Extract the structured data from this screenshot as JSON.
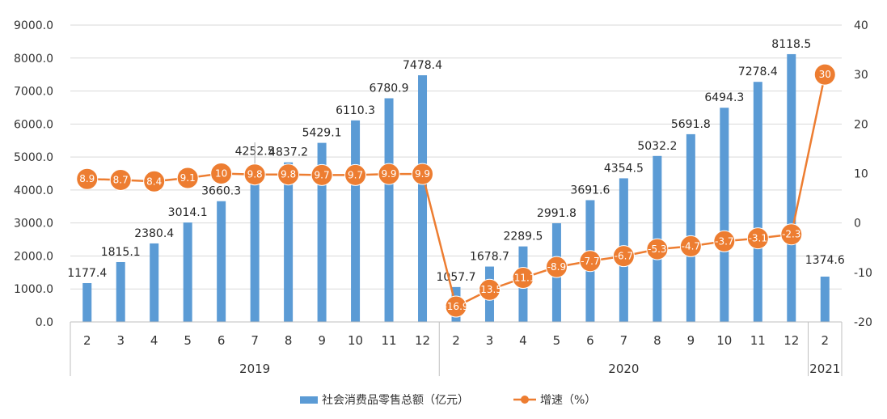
{
  "chart_data": {
    "type": "bar",
    "groups": [
      {
        "label": "2019",
        "categories": [
          "2",
          "3",
          "4",
          "5",
          "6",
          "7",
          "8",
          "9",
          "10",
          "11",
          "12"
        ]
      },
      {
        "label": "2020",
        "categories": [
          "2",
          "3",
          "4",
          "5",
          "6",
          "7",
          "8",
          "9",
          "10",
          "11",
          "12"
        ]
      },
      {
        "label": "2021",
        "categories": [
          "2"
        ]
      }
    ],
    "series": [
      {
        "name": "社会消费品零售总额（亿元）",
        "type": "bar",
        "axis": "left",
        "color": "#5B9BD5",
        "values": [
          1177.4,
          1815.1,
          2380.4,
          3014.1,
          3660.3,
          4252.5,
          4837.2,
          5429.1,
          6110.3,
          6780.9,
          7478.4,
          1057.7,
          1678.7,
          2289.5,
          2991.8,
          3691.6,
          4354.5,
          5032.2,
          5691.8,
          6494.3,
          7278.4,
          8118.5,
          1374.6
        ],
        "labels": [
          "1177.4",
          "1815.1",
          "2380.4",
          "3014.1",
          "3660.3",
          "4252.5",
          "4837.2",
          "5429.1",
          "6110.3",
          "6780.9",
          "7478.4",
          "1057.7",
          "1678.7",
          "2289.5",
          "2991.8",
          "3691.6",
          "4354.5",
          "5032.2",
          "5691.8",
          "6494.3",
          "7278.4",
          "8118.5",
          "1374.6"
        ]
      },
      {
        "name": "增速（%）",
        "type": "line",
        "axis": "right",
        "color": "#ED7D31",
        "values": [
          8.9,
          8.7,
          8.4,
          9.1,
          10,
          9.8,
          9.8,
          9.7,
          9.7,
          9.9,
          9.9,
          -16.9,
          -13.5,
          -11.1,
          -8.9,
          -7.7,
          -6.7,
          -5.3,
          -4.7,
          -3.7,
          -3.1,
          -2.3,
          30
        ],
        "labels": [
          "8.9",
          "8.7",
          "8.4",
          "9.1",
          "10",
          "9.8",
          "9.8",
          "9.7",
          "9.7",
          "9.9",
          "9.9",
          "-16.9",
          "-13.5",
          "-11.1",
          "-8.9",
          "-7.7",
          "-6.7",
          "-5.3",
          "-4.7",
          "-3.7",
          "-3.1",
          "-2.3",
          "30"
        ]
      }
    ],
    "y_left": {
      "min": 0,
      "max": 9000,
      "step": 1000,
      "tick_labels": [
        "0.0",
        "1000.0",
        "2000.0",
        "3000.0",
        "4000.0",
        "5000.0",
        "6000.0",
        "7000.0",
        "8000.0",
        "9000.0"
      ]
    },
    "y_right": {
      "min": -20,
      "max": 40,
      "step": 10,
      "tick_labels": [
        "-20",
        "-10",
        "0",
        "10",
        "20",
        "30",
        "40"
      ]
    },
    "grid": "horizontal",
    "legend_position": "bottom"
  }
}
